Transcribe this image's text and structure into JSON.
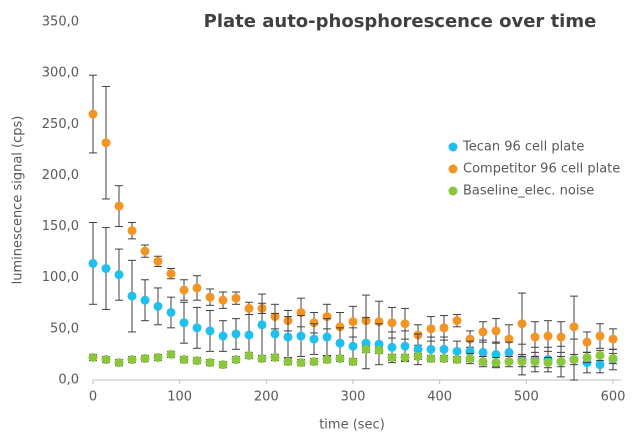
{
  "chart_data": {
    "type": "scatter",
    "title": "Plate auto-phosphorescence over time",
    "x_label": "time (sec)",
    "y_label": "luminescence signal (cps)",
    "x": [
      0,
      15,
      30,
      45,
      60,
      75,
      90,
      105,
      120,
      135,
      150,
      165,
      180,
      195,
      210,
      225,
      240,
      255,
      270,
      285,
      300,
      315,
      330,
      345,
      360,
      375,
      390,
      405,
      420,
      435,
      450,
      465,
      480,
      495,
      510,
      525,
      540,
      555,
      570,
      585,
      600
    ],
    "series": [
      {
        "name": "Tecan 96 cell plate",
        "color": "#1fbfee",
        "values": [
          114,
          109,
          103,
          82,
          78,
          72,
          66,
          56,
          51,
          48,
          43,
          45,
          44,
          54,
          45,
          42,
          43,
          40,
          42,
          36,
          33,
          36,
          35,
          32,
          33,
          30,
          30,
          30,
          28,
          28,
          27,
          25,
          27,
          20,
          20,
          20,
          18,
          20,
          17,
          15,
          20
        ],
        "errors": [
          40,
          40,
          25,
          35,
          20,
          18,
          15,
          20,
          20,
          20,
          15,
          15,
          20,
          30,
          20,
          20,
          20,
          15,
          18,
          15,
          18,
          25,
          20,
          15,
          15,
          15,
          12,
          12,
          10,
          10,
          12,
          12,
          10,
          15,
          12,
          12,
          15,
          20,
          10,
          8,
          10
        ]
      },
      {
        "name": "Competitor 96 cell plate",
        "color": "#f39423",
        "values": [
          260,
          232,
          170,
          146,
          126,
          116,
          104,
          88,
          90,
          81,
          78,
          80,
          70,
          70,
          62,
          58,
          66,
          56,
          62,
          52,
          57,
          58,
          57,
          56,
          55,
          44,
          50,
          51,
          58,
          40,
          47,
          48,
          40,
          55,
          42,
          43,
          42,
          52,
          37,
          43,
          40
        ],
        "errors": [
          38,
          55,
          20,
          8,
          6,
          5,
          5,
          10,
          12,
          8,
          8,
          6,
          6,
          5,
          12,
          10,
          14,
          10,
          12,
          14,
          15,
          25,
          20,
          15,
          15,
          10,
          12,
          12,
          6,
          8,
          10,
          12,
          14,
          30,
          15,
          15,
          15,
          30,
          10,
          12,
          10
        ]
      },
      {
        "name": "Baseline_elec. noise",
        "color": "#8cc63e",
        "values": [
          22,
          20,
          17,
          20,
          21,
          22,
          25,
          20,
          19,
          17,
          15,
          20,
          24,
          21,
          22,
          18,
          17,
          18,
          20,
          21,
          18,
          30,
          29,
          22,
          22,
          23,
          21,
          21,
          20,
          21,
          18,
          17,
          18,
          18,
          18,
          17,
          18,
          20,
          22,
          24,
          21
        ],
        "errors": [
          3,
          3,
          3,
          3,
          3,
          3,
          3,
          3,
          3,
          3,
          3,
          3,
          3,
          3,
          3,
          3,
          3,
          3,
          3,
          3,
          3,
          3,
          3,
          3,
          3,
          3,
          3,
          3,
          3,
          5,
          5,
          5,
          5,
          5,
          5,
          5,
          5,
          5,
          5,
          5,
          5
        ]
      }
    ],
    "xlim": [
      0,
      600
    ],
    "xticks": [
      0,
      100,
      200,
      300,
      400,
      500,
      600
    ],
    "ylim": [
      0,
      350
    ],
    "yticks": [
      {
        "value": 0,
        "label": "0,0"
      },
      {
        "value": 50,
        "label": "50,0"
      },
      {
        "value": 100,
        "label": "100,0"
      },
      {
        "value": 150,
        "label": "150,0"
      },
      {
        "value": 200,
        "label": "200,0"
      },
      {
        "value": 250,
        "label": "250,0"
      },
      {
        "value": 300,
        "label": "300,0"
      },
      {
        "value": 350,
        "label": "350,0"
      }
    ],
    "legend": "right"
  }
}
